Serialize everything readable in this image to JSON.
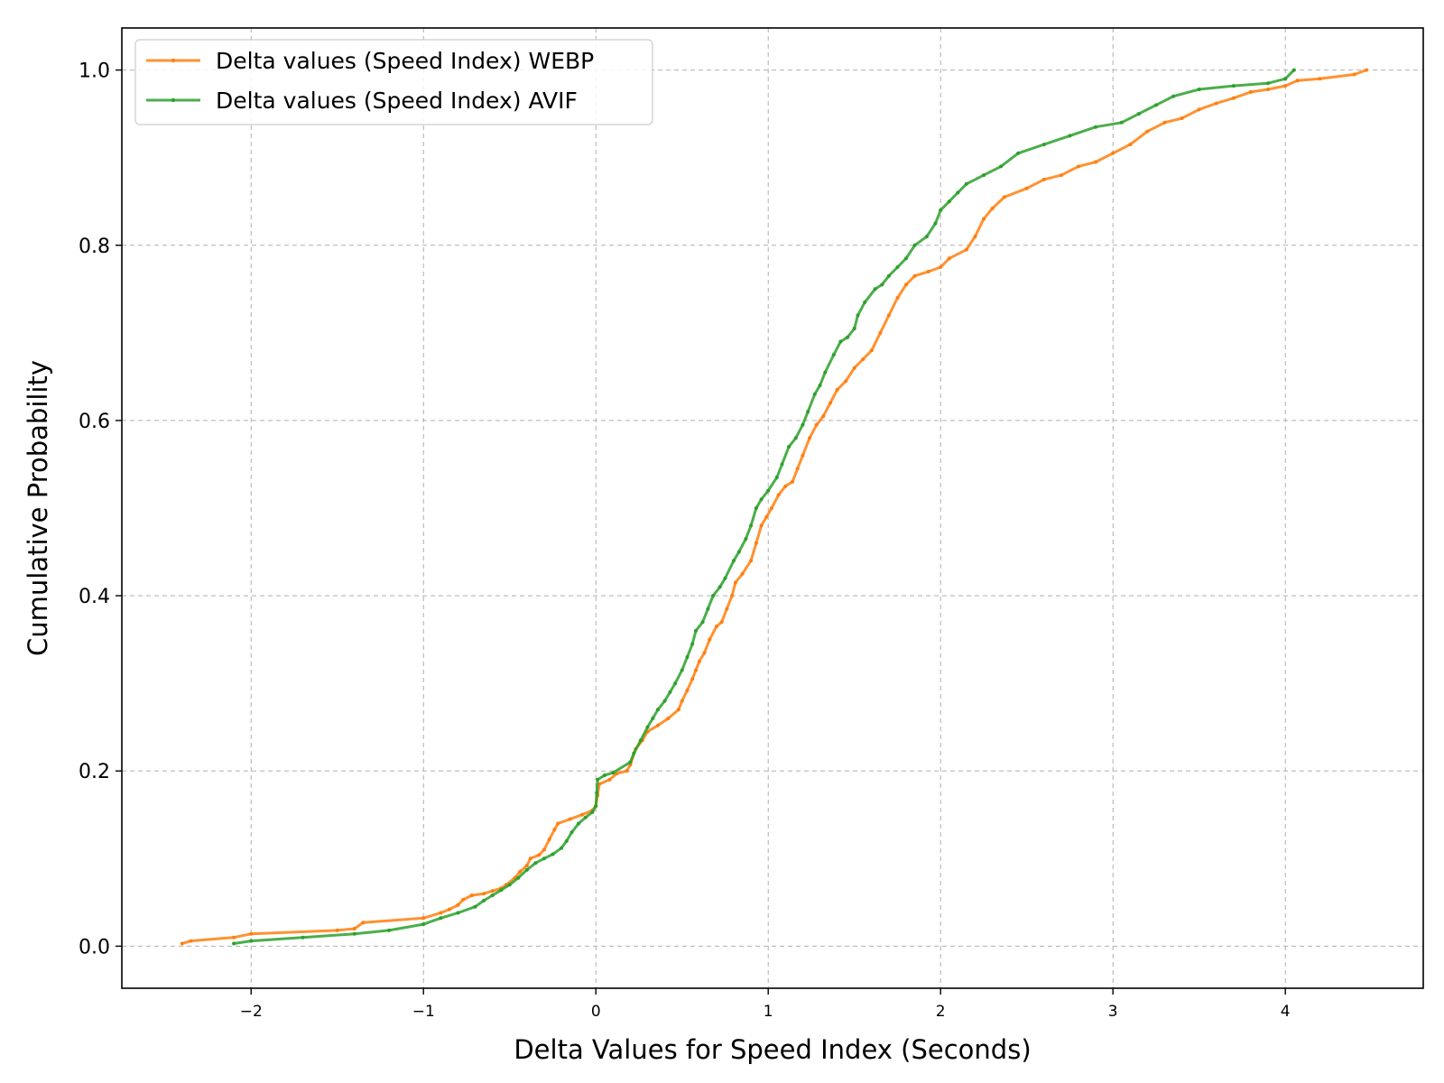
{
  "chart_data": {
    "type": "line",
    "title": "",
    "xlabel": "Delta Values for Speed Index (Seconds)",
    "ylabel": "Cumulative Probability",
    "xlim": [
      -2.75,
      4.8
    ],
    "ylim": [
      -0.048,
      1.048
    ],
    "x_ticks": [
      -2,
      -1,
      0,
      1,
      2,
      3,
      4
    ],
    "x_tick_labels": [
      "−2",
      "−1",
      "0",
      "1",
      "2",
      "3",
      "4"
    ],
    "y_ticks": [
      0.0,
      0.2,
      0.4,
      0.6,
      0.8,
      1.0
    ],
    "y_tick_labels": [
      "0.0",
      "0.2",
      "0.4",
      "0.6",
      "0.8",
      "1.0"
    ],
    "grid": true,
    "legend_position": "top-left",
    "series": [
      {
        "name": "Delta values (Speed Index) WEBP",
        "color": "#ff7f0e",
        "points": [
          [
            -2.4,
            0.003
          ],
          [
            -2.35,
            0.006
          ],
          [
            -2.1,
            0.01
          ],
          [
            -2.0,
            0.014
          ],
          [
            -1.5,
            0.018
          ],
          [
            -1.4,
            0.02
          ],
          [
            -1.35,
            0.027
          ],
          [
            -1.0,
            0.032
          ],
          [
            -0.9,
            0.038
          ],
          [
            -0.85,
            0.042
          ],
          [
            -0.8,
            0.047
          ],
          [
            -0.77,
            0.053
          ],
          [
            -0.72,
            0.058
          ],
          [
            -0.65,
            0.06
          ],
          [
            -0.6,
            0.063
          ],
          [
            -0.55,
            0.066
          ],
          [
            -0.52,
            0.07
          ],
          [
            -0.47,
            0.078
          ],
          [
            -0.44,
            0.085
          ],
          [
            -0.4,
            0.092
          ],
          [
            -0.38,
            0.1
          ],
          [
            -0.33,
            0.104
          ],
          [
            -0.3,
            0.11
          ],
          [
            -0.27,
            0.122
          ],
          [
            -0.24,
            0.133
          ],
          [
            -0.22,
            0.14
          ],
          [
            -0.15,
            0.145
          ],
          [
            -0.08,
            0.15
          ],
          [
            -0.02,
            0.155
          ],
          [
            0.0,
            0.16
          ],
          [
            0.01,
            0.172
          ],
          [
            0.02,
            0.185
          ],
          [
            0.08,
            0.19
          ],
          [
            0.12,
            0.197
          ],
          [
            0.18,
            0.2
          ],
          [
            0.2,
            0.207
          ],
          [
            0.23,
            0.225
          ],
          [
            0.27,
            0.235
          ],
          [
            0.3,
            0.245
          ],
          [
            0.36,
            0.252
          ],
          [
            0.42,
            0.26
          ],
          [
            0.48,
            0.27
          ],
          [
            0.5,
            0.28
          ],
          [
            0.53,
            0.292
          ],
          [
            0.56,
            0.305
          ],
          [
            0.58,
            0.315
          ],
          [
            0.6,
            0.325
          ],
          [
            0.63,
            0.335
          ],
          [
            0.66,
            0.35
          ],
          [
            0.7,
            0.365
          ],
          [
            0.73,
            0.37
          ],
          [
            0.76,
            0.385
          ],
          [
            0.79,
            0.4
          ],
          [
            0.81,
            0.415
          ],
          [
            0.85,
            0.425
          ],
          [
            0.9,
            0.44
          ],
          [
            0.93,
            0.46
          ],
          [
            0.96,
            0.48
          ],
          [
            0.99,
            0.49
          ],
          [
            1.02,
            0.5
          ],
          [
            1.06,
            0.515
          ],
          [
            1.1,
            0.525
          ],
          [
            1.14,
            0.53
          ],
          [
            1.17,
            0.545
          ],
          [
            1.2,
            0.56
          ],
          [
            1.24,
            0.58
          ],
          [
            1.28,
            0.595
          ],
          [
            1.32,
            0.605
          ],
          [
            1.36,
            0.62
          ],
          [
            1.4,
            0.635
          ],
          [
            1.45,
            0.645
          ],
          [
            1.5,
            0.66
          ],
          [
            1.55,
            0.67
          ],
          [
            1.6,
            0.68
          ],
          [
            1.65,
            0.7
          ],
          [
            1.7,
            0.72
          ],
          [
            1.75,
            0.74
          ],
          [
            1.8,
            0.755
          ],
          [
            1.85,
            0.765
          ],
          [
            1.93,
            0.77
          ],
          [
            2.0,
            0.775
          ],
          [
            2.05,
            0.785
          ],
          [
            2.15,
            0.795
          ],
          [
            2.2,
            0.81
          ],
          [
            2.25,
            0.83
          ],
          [
            2.3,
            0.842
          ],
          [
            2.37,
            0.855
          ],
          [
            2.5,
            0.865
          ],
          [
            2.6,
            0.875
          ],
          [
            2.7,
            0.88
          ],
          [
            2.8,
            0.89
          ],
          [
            2.9,
            0.895
          ],
          [
            3.0,
            0.905
          ],
          [
            3.1,
            0.915
          ],
          [
            3.2,
            0.93
          ],
          [
            3.3,
            0.94
          ],
          [
            3.4,
            0.945
          ],
          [
            3.5,
            0.955
          ],
          [
            3.6,
            0.962
          ],
          [
            3.7,
            0.968
          ],
          [
            3.8,
            0.975
          ],
          [
            3.9,
            0.978
          ],
          [
            4.0,
            0.982
          ],
          [
            4.07,
            0.988
          ],
          [
            4.2,
            0.99
          ],
          [
            4.4,
            0.995
          ],
          [
            4.47,
            1.0
          ]
        ]
      },
      {
        "name": "Delta values (Speed Index) AVIF",
        "color": "#2ca02c",
        "points": [
          [
            -2.1,
            0.003
          ],
          [
            -2.0,
            0.006
          ],
          [
            -1.7,
            0.01
          ],
          [
            -1.4,
            0.014
          ],
          [
            -1.2,
            0.018
          ],
          [
            -1.0,
            0.025
          ],
          [
            -0.9,
            0.032
          ],
          [
            -0.8,
            0.038
          ],
          [
            -0.7,
            0.045
          ],
          [
            -0.65,
            0.052
          ],
          [
            -0.6,
            0.058
          ],
          [
            -0.55,
            0.064
          ],
          [
            -0.5,
            0.07
          ],
          [
            -0.45,
            0.078
          ],
          [
            -0.4,
            0.087
          ],
          [
            -0.35,
            0.095
          ],
          [
            -0.3,
            0.1
          ],
          [
            -0.25,
            0.105
          ],
          [
            -0.2,
            0.112
          ],
          [
            -0.17,
            0.12
          ],
          [
            -0.14,
            0.13
          ],
          [
            -0.1,
            0.14
          ],
          [
            -0.06,
            0.147
          ],
          [
            -0.02,
            0.153
          ],
          [
            0.0,
            0.16
          ],
          [
            0.005,
            0.175
          ],
          [
            0.01,
            0.19
          ],
          [
            0.05,
            0.195
          ],
          [
            0.1,
            0.198
          ],
          [
            0.2,
            0.21
          ],
          [
            0.22,
            0.22
          ],
          [
            0.26,
            0.235
          ],
          [
            0.3,
            0.25
          ],
          [
            0.33,
            0.26
          ],
          [
            0.36,
            0.27
          ],
          [
            0.4,
            0.28
          ],
          [
            0.43,
            0.29
          ],
          [
            0.46,
            0.3
          ],
          [
            0.5,
            0.315
          ],
          [
            0.53,
            0.33
          ],
          [
            0.56,
            0.345
          ],
          [
            0.58,
            0.36
          ],
          [
            0.62,
            0.37
          ],
          [
            0.65,
            0.385
          ],
          [
            0.68,
            0.4
          ],
          [
            0.72,
            0.41
          ],
          [
            0.75,
            0.42
          ],
          [
            0.8,
            0.44
          ],
          [
            0.83,
            0.45
          ],
          [
            0.87,
            0.465
          ],
          [
            0.9,
            0.48
          ],
          [
            0.93,
            0.5
          ],
          [
            0.96,
            0.51
          ],
          [
            1.0,
            0.52
          ],
          [
            1.05,
            0.535
          ],
          [
            1.08,
            0.55
          ],
          [
            1.12,
            0.57
          ],
          [
            1.16,
            0.58
          ],
          [
            1.2,
            0.595
          ],
          [
            1.23,
            0.61
          ],
          [
            1.27,
            0.63
          ],
          [
            1.3,
            0.64
          ],
          [
            1.33,
            0.655
          ],
          [
            1.38,
            0.675
          ],
          [
            1.42,
            0.69
          ],
          [
            1.46,
            0.695
          ],
          [
            1.5,
            0.705
          ],
          [
            1.52,
            0.72
          ],
          [
            1.56,
            0.735
          ],
          [
            1.62,
            0.75
          ],
          [
            1.66,
            0.755
          ],
          [
            1.7,
            0.765
          ],
          [
            1.75,
            0.775
          ],
          [
            1.8,
            0.785
          ],
          [
            1.85,
            0.8
          ],
          [
            1.92,
            0.81
          ],
          [
            1.97,
            0.825
          ],
          [
            2.0,
            0.84
          ],
          [
            2.05,
            0.85
          ],
          [
            2.1,
            0.86
          ],
          [
            2.15,
            0.87
          ],
          [
            2.25,
            0.88
          ],
          [
            2.35,
            0.89
          ],
          [
            2.45,
            0.905
          ],
          [
            2.6,
            0.915
          ],
          [
            2.75,
            0.925
          ],
          [
            2.9,
            0.935
          ],
          [
            3.05,
            0.94
          ],
          [
            3.15,
            0.95
          ],
          [
            3.25,
            0.96
          ],
          [
            3.35,
            0.97
          ],
          [
            3.5,
            0.978
          ],
          [
            3.7,
            0.982
          ],
          [
            3.9,
            0.985
          ],
          [
            4.0,
            0.99
          ],
          [
            4.05,
            1.0
          ]
        ]
      }
    ]
  }
}
